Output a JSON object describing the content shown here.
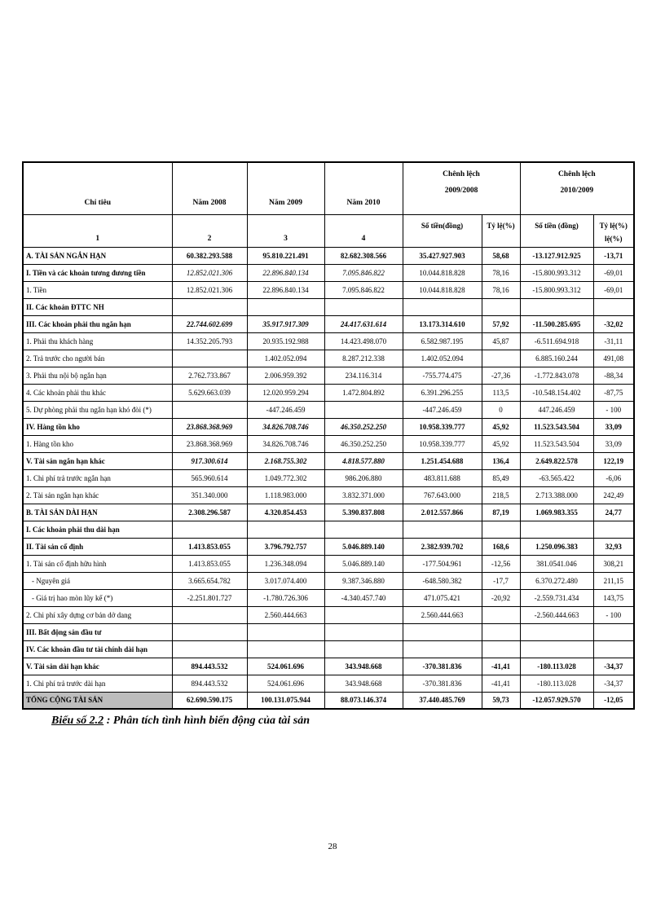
{
  "page": {
    "number": "28"
  },
  "caption": {
    "label": "Biểu số 2.2",
    "text": " : Phân tích tình hình biến động của tài sản"
  },
  "table": {
    "header": {
      "criteria": "Chỉ tiêu",
      "year_2008": "Năm 2008",
      "year_2009": "Năm 2009",
      "year_2010": "Năm 2010",
      "group_2009_2008": "Chênh lệch\n2009/2008",
      "group_2010_2009": "Chênh lệch\n2010/2009",
      "sub": [
        "1",
        "2",
        "3",
        "4",
        "Số tiền(đồng)",
        "Tỷ lệ(%)",
        "Số tiền (đồng)",
        "Tỷ lệ(%)\nlệ(%)"
      ]
    },
    "rows": [
      {
        "label": "A. TÀI SẢN NGẮN HẠN",
        "ls": "b",
        "vy": "b",
        "vd": "b",
        "cells": [
          "60.382.293.588",
          "95.810.221.491",
          "82.682.308.566",
          "35.427.927.903",
          "58,68",
          "-13.127.912.925",
          "-13,71"
        ]
      },
      {
        "label": "I. Tiền và các khoản tương đương tiền",
        "ls": "b",
        "vy": "i",
        "vd": "n",
        "cells": [
          "12.852.021.306",
          "22.896.840.134",
          "7.095.846.822",
          "10.044.818.828",
          "78,16",
          "-15.800.993.312",
          "-69,01"
        ]
      },
      {
        "label": "1. Tiền",
        "ls": "n",
        "vy": "n",
        "vd": "n",
        "cells": [
          "12.852.021.306",
          "22.896.840.134",
          "7.095.846.822",
          "10.044.818.828",
          "78,16",
          "-15.800.993.312",
          "-69,01"
        ]
      },
      {
        "label": "II. Các khoản ĐTTC NH",
        "ls": "b",
        "vy": "n",
        "vd": "n",
        "cells": [
          "",
          "",
          "",
          "",
          "",
          "",
          ""
        ]
      },
      {
        "label": "III. Các khoản phải thu ngắn hạn",
        "ls": "b",
        "vy": "bi",
        "vd": "b",
        "cells": [
          "22.744.602.699",
          "35.917.917.309",
          "24.417.631.614",
          "13.173.314.610",
          "57,92",
          "-11.500.285.695",
          "-32,02"
        ]
      },
      {
        "label": "1. Phải thu khách hàng",
        "ls": "n",
        "vy": "n",
        "vd": "n",
        "cells": [
          "14.352.205.793",
          "20.935.192.988",
          "14.423.498.070",
          "6.582.987.195",
          "45,87",
          "-6.511.694.918",
          "-31,11"
        ]
      },
      {
        "label": "2. Trả trước cho người bán",
        "ls": "n",
        "vy": "n",
        "vd": "n",
        "cells": [
          "",
          "1.402.052.094",
          "8.287.212.338",
          "1.402.052.094",
          "",
          "6.885.160.244",
          "491,08"
        ]
      },
      {
        "label": "3. Phải thu nội bộ ngắn hạn",
        "ls": "n",
        "vy": "n",
        "vd": "n",
        "cells": [
          "2.762.733.867",
          "2.006.959.392",
          "234.116.314",
          "-755.774.475",
          "-27,36",
          "-1.772.843.078",
          "-88,34"
        ]
      },
      {
        "label": "4. Các khoản phải thu khác",
        "ls": "n",
        "vy": "n",
        "vd": "n",
        "cells": [
          "5.629.663.039",
          "12.020.959.294",
          "1.472.804.892",
          "6.391.296.255",
          "113,5",
          "-10.548.154.402",
          "-87,75"
        ]
      },
      {
        "label": "5. Dự phòng phải thu ngắn hạn khó đòi (*)",
        "ls": "n",
        "vy": "n",
        "vd": "n",
        "cells": [
          "",
          "-447.246.459",
          "",
          "-447.246.459",
          "0",
          "447.246.459",
          "- 100"
        ]
      },
      {
        "label": "IV. Hàng tồn kho",
        "ls": "b",
        "vy": "bi",
        "vd": "b",
        "cells": [
          "23.868.368.969",
          "34.826.708.746",
          "46.350.252.250",
          "10.958.339.777",
          "45,92",
          "11.523.543.504",
          "33,09"
        ]
      },
      {
        "label": "1. Hàng tồn kho",
        "ls": "n",
        "vy": "n",
        "vd": "n",
        "cells": [
          "23.868.368.969",
          "34.826.708.746",
          "46.350.252.250",
          "10.958.339.777",
          "45,92",
          "11.523.543.504",
          "33,09"
        ]
      },
      {
        "label": "V. Tài sản ngắn hạn khác",
        "ls": "b",
        "vy": "bi",
        "vd": "b",
        "cells": [
          "917.300.614",
          "2.168.755.302",
          "4.818.577.880",
          "1.251.454.688",
          "136,4",
          "2.649.822.578",
          "122,19"
        ]
      },
      {
        "label": "1. Chi phí trả trước ngắn hạn",
        "ls": "n",
        "vy": "n",
        "vd": "n",
        "cells": [
          "565.960.614",
          "1.049.772.302",
          "986.206.880",
          "483.811.688",
          "85,49",
          "-63.565.422",
          "-6,06"
        ]
      },
      {
        "label": "2. Tài sản ngắn hạn khác",
        "ls": "n",
        "vy": "n",
        "vd": "n",
        "cells": [
          "351.340.000",
          "1.118.983.000",
          "3.832.371.000",
          "767.643.000",
          "218,5",
          "2.713.388.000",
          "242,49"
        ]
      },
      {
        "label": "B. TÀI SẢN DÀI HẠN",
        "ls": "b",
        "vy": "b",
        "vd": "b",
        "cells": [
          "2.308.296.587",
          "4.320.854.453",
          "5.390.837.808",
          "2.012.557.866",
          "87,19",
          "1.069.983.355",
          "24,77"
        ]
      },
      {
        "label": "I. Các khoản phải thu dài hạn",
        "ls": "b",
        "vy": "n",
        "vd": "n",
        "cells": [
          "",
          "",
          "",
          "",
          "",
          "",
          ""
        ]
      },
      {
        "label": "II. Tài sản cố định",
        "ls": "b",
        "vy": "b",
        "vd": "b",
        "cells": [
          "1.413.853.055",
          "3.796.792.757",
          "5.046.889.140",
          "2.382.939.702",
          "168,6",
          "1.250.096.383",
          "32,93"
        ]
      },
      {
        "label": "1. Tài sản cố định hữu hình",
        "ls": "n",
        "vy": "n",
        "vd": "n",
        "cells": [
          "1.413.853.055",
          "1.236.348.094",
          "5.046.889.140",
          "-177.504.961",
          "-12,56",
          "381.0541.046",
          "308,21"
        ]
      },
      {
        "label": "- Nguyên giá",
        "ls": "n",
        "vy": "n",
        "vd": "n",
        "indent": true,
        "cells": [
          "3.665.654.782",
          "3.017.074.400",
          "9.387.346.880",
          "-648.580.382",
          "-17,7",
          "6.370.272.480",
          "211,15"
        ]
      },
      {
        "label": "- Giá trị hao mòn lũy kế (*)",
        "ls": "n",
        "vy": "n",
        "vd": "n",
        "indent": true,
        "cells": [
          "-2.251.801.727",
          "-1.780.726.306",
          "-4.340.457.740",
          "471.075.421",
          "-20,92",
          "-2.559.731.434",
          "143,75"
        ]
      },
      {
        "label": "2. Chi phí xây dựng cơ bản dở dang",
        "ls": "n",
        "vy": "n",
        "vd": "n",
        "cells": [
          "",
          "2.560.444.663",
          "",
          "2.560.444.663",
          "",
          "-2.560.444.663",
          "- 100"
        ]
      },
      {
        "label": "III. Bất động sản đầu tư",
        "ls": "b",
        "vy": "n",
        "vd": "n",
        "cells": [
          "",
          "",
          "",
          "",
          "",
          "",
          ""
        ]
      },
      {
        "label": "IV. Các khoản đầu tư tài chính dài hạn",
        "ls": "b",
        "vy": "n",
        "vd": "n",
        "cells": [
          "",
          "",
          "",
          "",
          "",
          "",
          ""
        ]
      },
      {
        "label": "V. Tài sản dài hạn khác",
        "ls": "b",
        "vy": "b",
        "vd": "b",
        "cells": [
          "894.443.532",
          "524.061.696",
          "343.948.668",
          "-370.381.836",
          "-41,41",
          "-180.113.028",
          "-34,37"
        ]
      },
      {
        "label": "1. Chi phí trả trước dài hạn",
        "ls": "n",
        "vy": "n",
        "vd": "n",
        "cells": [
          "894.443.532",
          "524.061.696",
          "343.948.668",
          "-370.381.836",
          "-41,41",
          "-180.113.028",
          "-34,37"
        ]
      },
      {
        "label": "TỔNG CỘNG TÀI SẢN",
        "ls": "b",
        "vy": "b",
        "vd": "b",
        "total": true,
        "cells": [
          "62.690.590.175",
          "100.131.075.944",
          "88.073.146.374",
          "37.440.485.769",
          "59,73",
          "-12.057.929.570",
          "-12,05"
        ]
      }
    ]
  }
}
